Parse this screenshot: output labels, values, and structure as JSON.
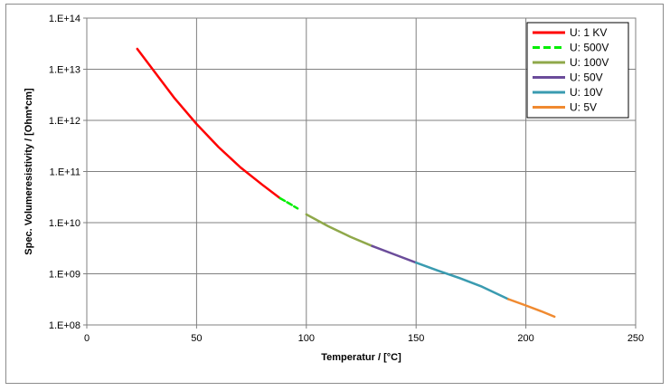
{
  "chart_data": {
    "type": "line",
    "title": "",
    "xlabel": "Temperatur / [°C]",
    "ylabel": "Spec. Volumeresistivity / [Ohm*cm]",
    "xlim": [
      0,
      250
    ],
    "ylim": [
      100000000,
      100000000000000
    ],
    "yscale": "log",
    "grid": true,
    "legend_position": "top-right",
    "x_ticks": [
      "0",
      "50",
      "100",
      "150",
      "200",
      "250"
    ],
    "y_ticks": [
      "1.E+08",
      "1.E+09",
      "1.E+10",
      "1.E+11",
      "1.E+12",
      "1.E+13",
      "1.E+14"
    ],
    "series": [
      {
        "name": "U: 1 KV",
        "color": "#ff0000",
        "dash": "solid",
        "x": [
          23,
          30,
          40,
          50,
          60,
          70,
          80,
          88
        ],
        "y": [
          25000000000000.0,
          10000000000000.0,
          2700000000000.0,
          850000000000.0,
          300000000000.0,
          120000000000.0,
          55000000000.0,
          30000000000.0
        ]
      },
      {
        "name": "U: 500V",
        "color": "#00ee00",
        "dash": "dashed",
        "x": [
          88,
          92,
          96
        ],
        "y": [
          30000000000.0,
          24000000000.0,
          19000000000.0
        ]
      },
      {
        "name": "U: 100V",
        "color": "#8fa84a",
        "dash": "solid",
        "x": [
          100,
          110,
          120,
          130
        ],
        "y": [
          14500000000.0,
          8500000000.0,
          5300000000.0,
          3500000000.0
        ]
      },
      {
        "name": "U: 50V",
        "color": "#6b4c9a",
        "dash": "solid",
        "x": [
          130,
          140,
          150
        ],
        "y": [
          3500000000.0,
          2400000000.0,
          1650000000.0
        ]
      },
      {
        "name": "U: 10V",
        "color": "#3a9bb0",
        "dash": "solid",
        "x": [
          150,
          160,
          170,
          180,
          192
        ],
        "y": [
          1650000000.0,
          1150000000.0,
          820000000.0,
          560000000.0,
          320000000.0
        ]
      },
      {
        "name": "U: 5V",
        "color": "#f08a30",
        "dash": "solid",
        "x": [
          192,
          200,
          207,
          213
        ],
        "y": [
          320000000.0,
          240000000.0,
          185000000.0,
          145000000.0
        ]
      }
    ]
  }
}
